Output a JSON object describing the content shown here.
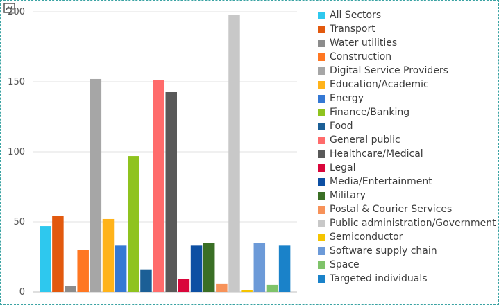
{
  "chart_data": {
    "type": "bar",
    "title": "",
    "xlabel": "",
    "ylabel": "",
    "ylim": [
      0,
      200
    ],
    "yticks": [
      0,
      50,
      100,
      150,
      200
    ],
    "ytick_labels": [
      "0",
      "50",
      "100",
      "150",
      "200"
    ],
    "grid": true,
    "legend_position": "right",
    "series": [
      {
        "name": "All Sectors",
        "value": 47,
        "color": "#2ec8ee"
      },
      {
        "name": "Transport",
        "value": 54,
        "color": "#e2590e"
      },
      {
        "name": "Water utilities",
        "value": 4,
        "color": "#8c8c8c"
      },
      {
        "name": "Construction",
        "value": 30,
        "color": "#ff7722"
      },
      {
        "name": "Digital Service Providers",
        "value": 152,
        "color": "#a6a6a6"
      },
      {
        "name": "Education/Academic",
        "value": 52,
        "color": "#ffb31a"
      },
      {
        "name": "Energy",
        "value": 33,
        "color": "#3478d4"
      },
      {
        "name": "Finance/Banking",
        "value": 97,
        "color": "#8fc31f"
      },
      {
        "name": "Food",
        "value": 16,
        "color": "#1b5f96"
      },
      {
        "name": "General public",
        "value": 151,
        "color": "#ff6b6b"
      },
      {
        "name": "Healthcare/Medical",
        "value": 143,
        "color": "#595959"
      },
      {
        "name": "Legal",
        "value": 9,
        "color": "#d9063b"
      },
      {
        "name": "Media/Entertainment",
        "value": 33,
        "color": "#0d4fa3"
      },
      {
        "name": "Military",
        "value": 35,
        "color": "#3a6f25"
      },
      {
        "name": "Postal & Courier Services",
        "value": 6,
        "color": "#f79259"
      },
      {
        "name": "Public administration/Government",
        "value": 198,
        "color": "#c8c8c8"
      },
      {
        "name": "Semiconductor",
        "value": 1,
        "color": "#f5c400"
      },
      {
        "name": "Software supply chain",
        "value": 35,
        "color": "#6c9ad8"
      },
      {
        "name": "Space",
        "value": 5,
        "color": "#7fc36a"
      },
      {
        "name": "Targeted individuals",
        "value": 33,
        "color": "#1a82c9"
      }
    ]
  }
}
